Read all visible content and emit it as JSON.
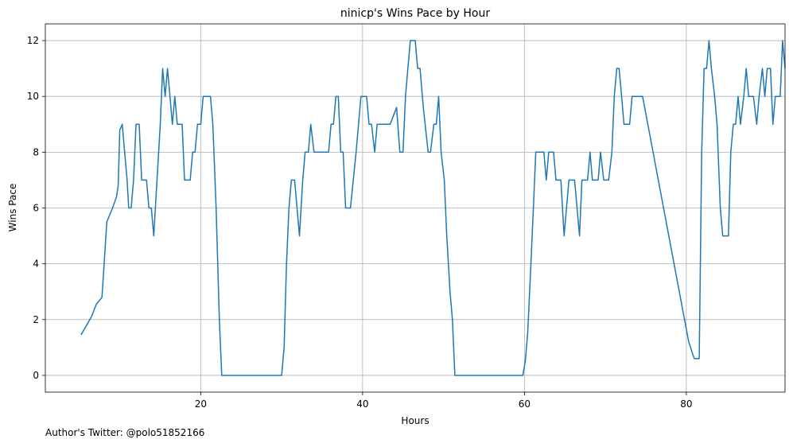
{
  "footer": {
    "text": "Author's Twitter: @polo51852166"
  },
  "colors": {
    "line": "#1f77b4",
    "grid": "#b0b0b0",
    "axes": "#000000"
  },
  "chart_data": {
    "type": "line",
    "title": "ninicp's Wins Pace by Hour",
    "xlabel": "Hours",
    "ylabel": "Wins Pace",
    "xlim": [
      0.8,
      92.2
    ],
    "ylim": [
      -0.6,
      12.6
    ],
    "xticks": [
      20,
      40,
      60,
      80
    ],
    "yticks": [
      0,
      2,
      4,
      6,
      8,
      10,
      12
    ],
    "grid": true,
    "series": [
      {
        "values": [
          [
            5.2,
            1.45
          ],
          [
            5.9,
            1.8
          ],
          [
            6.5,
            2.1
          ],
          [
            7.1,
            2.55
          ],
          [
            7.8,
            2.8
          ],
          [
            8.4,
            5.5
          ],
          [
            9.1,
            6.0
          ],
          [
            9.6,
            6.4
          ],
          [
            9.8,
            6.8
          ],
          [
            10.0,
            8.8
          ],
          [
            10.3,
            9.0
          ],
          [
            10.6,
            8.0
          ],
          [
            10.9,
            7.0
          ],
          [
            11.1,
            6.0
          ],
          [
            11.4,
            6.0
          ],
          [
            11.7,
            7.0
          ],
          [
            12.0,
            9.0
          ],
          [
            12.4,
            9.0
          ],
          [
            12.7,
            7.0
          ],
          [
            13.3,
            7.0
          ],
          [
            13.6,
            6.0
          ],
          [
            13.9,
            6.0
          ],
          [
            14.2,
            5.0
          ],
          [
            14.6,
            7.0
          ],
          [
            15.0,
            9.0
          ],
          [
            15.3,
            11.0
          ],
          [
            15.6,
            10.0
          ],
          [
            15.9,
            11.0
          ],
          [
            16.2,
            10.0
          ],
          [
            16.5,
            9.0
          ],
          [
            16.8,
            10.0
          ],
          [
            17.1,
            9.0
          ],
          [
            17.7,
            9.0
          ],
          [
            18.0,
            7.0
          ],
          [
            18.7,
            7.0
          ],
          [
            19.0,
            8.0
          ],
          [
            19.3,
            8.0
          ],
          [
            19.6,
            9.0
          ],
          [
            20.0,
            9.0
          ],
          [
            20.3,
            10.0
          ],
          [
            21.2,
            10.0
          ],
          [
            21.5,
            9.0
          ],
          [
            21.9,
            6.0
          ],
          [
            22.3,
            2.0
          ],
          [
            22.6,
            0.0
          ],
          [
            30.0,
            0.0
          ],
          [
            30.3,
            1.0
          ],
          [
            30.6,
            4.0
          ],
          [
            30.9,
            6.0
          ],
          [
            31.2,
            7.0
          ],
          [
            31.6,
            7.0
          ],
          [
            32.2,
            5.0
          ],
          [
            32.6,
            7.0
          ],
          [
            32.9,
            8.0
          ],
          [
            33.3,
            8.0
          ],
          [
            33.6,
            9.0
          ],
          [
            34.0,
            8.0
          ],
          [
            35.8,
            8.0
          ],
          [
            36.1,
            9.0
          ],
          [
            36.4,
            9.0
          ],
          [
            36.7,
            10.0
          ],
          [
            37.0,
            10.0
          ],
          [
            37.3,
            8.0
          ],
          [
            37.6,
            8.0
          ],
          [
            37.9,
            6.0
          ],
          [
            38.5,
            6.0
          ],
          [
            39.2,
            8.0
          ],
          [
            39.8,
            10.0
          ],
          [
            40.5,
            10.0
          ],
          [
            40.8,
            9.0
          ],
          [
            41.1,
            9.0
          ],
          [
            41.5,
            8.0
          ],
          [
            41.8,
            9.0
          ],
          [
            43.4,
            9.0
          ],
          [
            44.2,
            9.6
          ],
          [
            44.6,
            8.0
          ],
          [
            45.0,
            8.0
          ],
          [
            45.3,
            10.0
          ],
          [
            45.6,
            11.0
          ],
          [
            45.9,
            12.0
          ],
          [
            46.5,
            12.0
          ],
          [
            46.8,
            11.0
          ],
          [
            47.1,
            11.0
          ],
          [
            47.5,
            9.6
          ],
          [
            48.1,
            8.0
          ],
          [
            48.4,
            8.0
          ],
          [
            48.8,
            9.0
          ],
          [
            49.1,
            9.0
          ],
          [
            49.4,
            10.0
          ],
          [
            49.7,
            8.0
          ],
          [
            50.1,
            7.0
          ],
          [
            50.4,
            5.0
          ],
          [
            50.8,
            3.0
          ],
          [
            51.1,
            2.0
          ],
          [
            51.4,
            0.0
          ],
          [
            59.8,
            0.0
          ],
          [
            60.1,
            0.5
          ],
          [
            60.4,
            1.5
          ],
          [
            60.8,
            4.0
          ],
          [
            61.1,
            6.0
          ],
          [
            61.4,
            8.0
          ],
          [
            62.4,
            8.0
          ],
          [
            62.7,
            7.0
          ],
          [
            63.0,
            8.0
          ],
          [
            63.6,
            8.0
          ],
          [
            63.9,
            7.0
          ],
          [
            64.5,
            7.0
          ],
          [
            64.9,
            5.0
          ],
          [
            65.5,
            7.0
          ],
          [
            66.2,
            7.0
          ],
          [
            66.8,
            5.0
          ],
          [
            67.1,
            7.0
          ],
          [
            67.8,
            7.0
          ],
          [
            68.1,
            8.0
          ],
          [
            68.4,
            7.0
          ],
          [
            69.1,
            7.0
          ],
          [
            69.4,
            8.0
          ],
          [
            69.8,
            7.0
          ],
          [
            70.4,
            7.0
          ],
          [
            70.8,
            8.0
          ],
          [
            71.1,
            10.0
          ],
          [
            71.4,
            11.0
          ],
          [
            71.7,
            11.0
          ],
          [
            72.0,
            10.0
          ],
          [
            72.3,
            9.0
          ],
          [
            73.0,
            9.0
          ],
          [
            73.3,
            10.0
          ],
          [
            74.6,
            10.0
          ],
          [
            80.3,
            1.2
          ],
          [
            80.8,
            0.75
          ],
          [
            81.0,
            0.6
          ],
          [
            81.6,
            0.6
          ],
          [
            81.9,
            8.0
          ],
          [
            82.2,
            11.0
          ],
          [
            82.5,
            11.0
          ],
          [
            82.8,
            12.0
          ],
          [
            83.1,
            11.0
          ],
          [
            83.5,
            10.0
          ],
          [
            83.8,
            9.0
          ],
          [
            84.2,
            6.0
          ],
          [
            84.5,
            5.0
          ],
          [
            85.2,
            5.0
          ],
          [
            85.5,
            8.0
          ],
          [
            85.8,
            9.0
          ],
          [
            86.1,
            9.0
          ],
          [
            86.4,
            10.0
          ],
          [
            86.7,
            9.0
          ],
          [
            87.1,
            10.0
          ],
          [
            87.4,
            11.0
          ],
          [
            87.7,
            10.0
          ],
          [
            88.3,
            10.0
          ],
          [
            88.7,
            9.0
          ],
          [
            89.0,
            10.0
          ],
          [
            89.4,
            11.0
          ],
          [
            89.7,
            10.0
          ],
          [
            90.0,
            11.0
          ],
          [
            90.4,
            11.0
          ],
          [
            90.7,
            9.0
          ],
          [
            91.0,
            10.0
          ],
          [
            91.6,
            10.0
          ],
          [
            91.9,
            12.0
          ],
          [
            92.2,
            11.0
          ]
        ]
      }
    ]
  }
}
